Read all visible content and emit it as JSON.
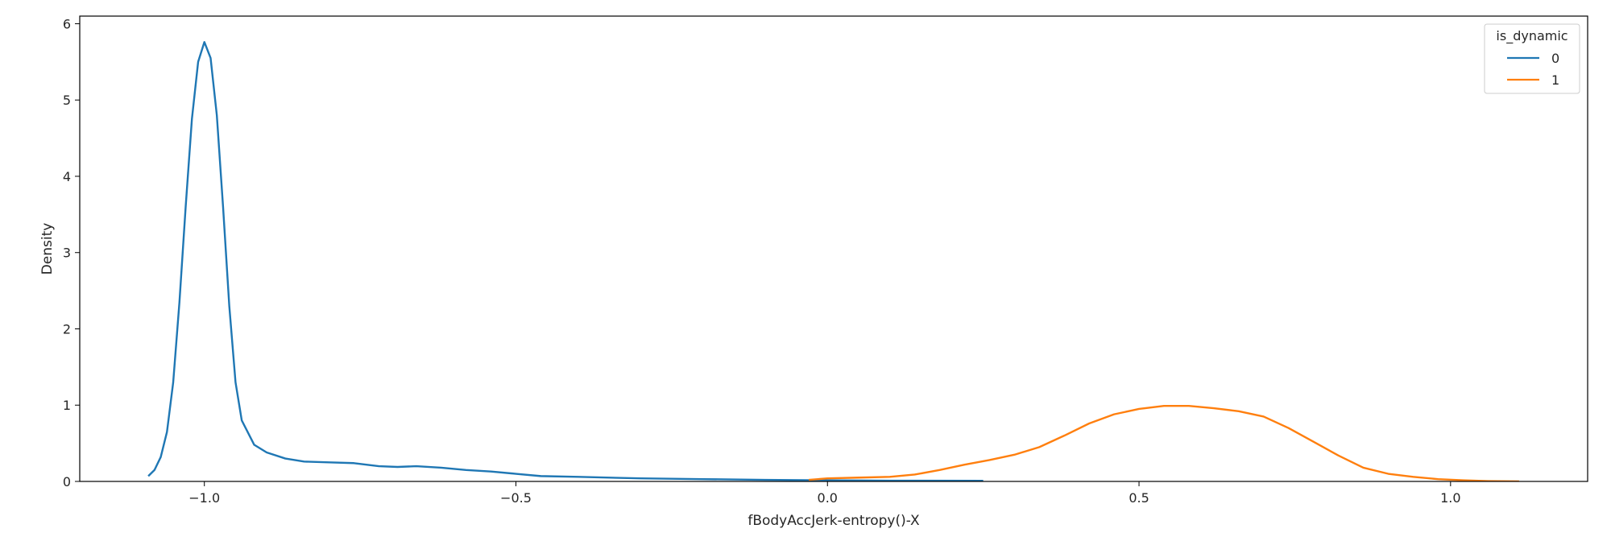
{
  "chart_data": {
    "type": "line",
    "xlabel": "fBodyAccJerk-entropy()-X",
    "ylabel": "Density",
    "xlim": [
      -1.2,
      1.22
    ],
    "ylim": [
      0,
      6.1
    ],
    "xticks": [
      -1.0,
      -0.5,
      0.0,
      0.5,
      1.0
    ],
    "xtick_labels": [
      "−1.0",
      "−0.5",
      "0.0",
      "0.5",
      "1.0"
    ],
    "yticks": [
      0,
      1,
      2,
      3,
      4,
      5,
      6
    ],
    "ytick_labels": [
      "0",
      "1",
      "2",
      "3",
      "4",
      "5",
      "6"
    ],
    "grid": false,
    "legend": {
      "title": "is_dynamic",
      "placement": "top-right"
    },
    "series": [
      {
        "name": "0",
        "color": "#1f77b4",
        "points": [
          [
            -1.09,
            0.07
          ],
          [
            -1.08,
            0.15
          ],
          [
            -1.07,
            0.32
          ],
          [
            -1.06,
            0.65
          ],
          [
            -1.05,
            1.3
          ],
          [
            -1.04,
            2.35
          ],
          [
            -1.03,
            3.6
          ],
          [
            -1.02,
            4.75
          ],
          [
            -1.01,
            5.5
          ],
          [
            -1.0,
            5.76
          ],
          [
            -0.99,
            5.55
          ],
          [
            -0.98,
            4.8
          ],
          [
            -0.97,
            3.6
          ],
          [
            -0.96,
            2.3
          ],
          [
            -0.95,
            1.3
          ],
          [
            -0.94,
            0.8
          ],
          [
            -0.92,
            0.48
          ],
          [
            -0.9,
            0.38
          ],
          [
            -0.87,
            0.3
          ],
          [
            -0.84,
            0.26
          ],
          [
            -0.8,
            0.25
          ],
          [
            -0.76,
            0.24
          ],
          [
            -0.72,
            0.2
          ],
          [
            -0.69,
            0.19
          ],
          [
            -0.66,
            0.2
          ],
          [
            -0.62,
            0.18
          ],
          [
            -0.58,
            0.15
          ],
          [
            -0.54,
            0.13
          ],
          [
            -0.5,
            0.1
          ],
          [
            -0.46,
            0.07
          ],
          [
            -0.4,
            0.06
          ],
          [
            -0.3,
            0.04
          ],
          [
            -0.2,
            0.03
          ],
          [
            -0.1,
            0.02
          ],
          [
            0.0,
            0.015
          ],
          [
            0.1,
            0.01
          ],
          [
            0.25,
            0.008
          ]
        ]
      },
      {
        "name": "1",
        "color": "#ff7f0e",
        "points": [
          [
            -0.03,
            0.02
          ],
          [
            0.0,
            0.04
          ],
          [
            0.05,
            0.05
          ],
          [
            0.1,
            0.06
          ],
          [
            0.14,
            0.09
          ],
          [
            0.18,
            0.15
          ],
          [
            0.22,
            0.22
          ],
          [
            0.26,
            0.28
          ],
          [
            0.3,
            0.35
          ],
          [
            0.34,
            0.45
          ],
          [
            0.38,
            0.6
          ],
          [
            0.42,
            0.76
          ],
          [
            0.46,
            0.88
          ],
          [
            0.5,
            0.95
          ],
          [
            0.54,
            0.99
          ],
          [
            0.58,
            0.99
          ],
          [
            0.62,
            0.96
          ],
          [
            0.66,
            0.92
          ],
          [
            0.7,
            0.85
          ],
          [
            0.74,
            0.7
          ],
          [
            0.78,
            0.52
          ],
          [
            0.82,
            0.34
          ],
          [
            0.86,
            0.18
          ],
          [
            0.9,
            0.1
          ],
          [
            0.94,
            0.06
          ],
          [
            0.98,
            0.03
          ],
          [
            1.02,
            0.015
          ],
          [
            1.06,
            0.005
          ],
          [
            1.11,
            0.001
          ]
        ]
      }
    ]
  }
}
